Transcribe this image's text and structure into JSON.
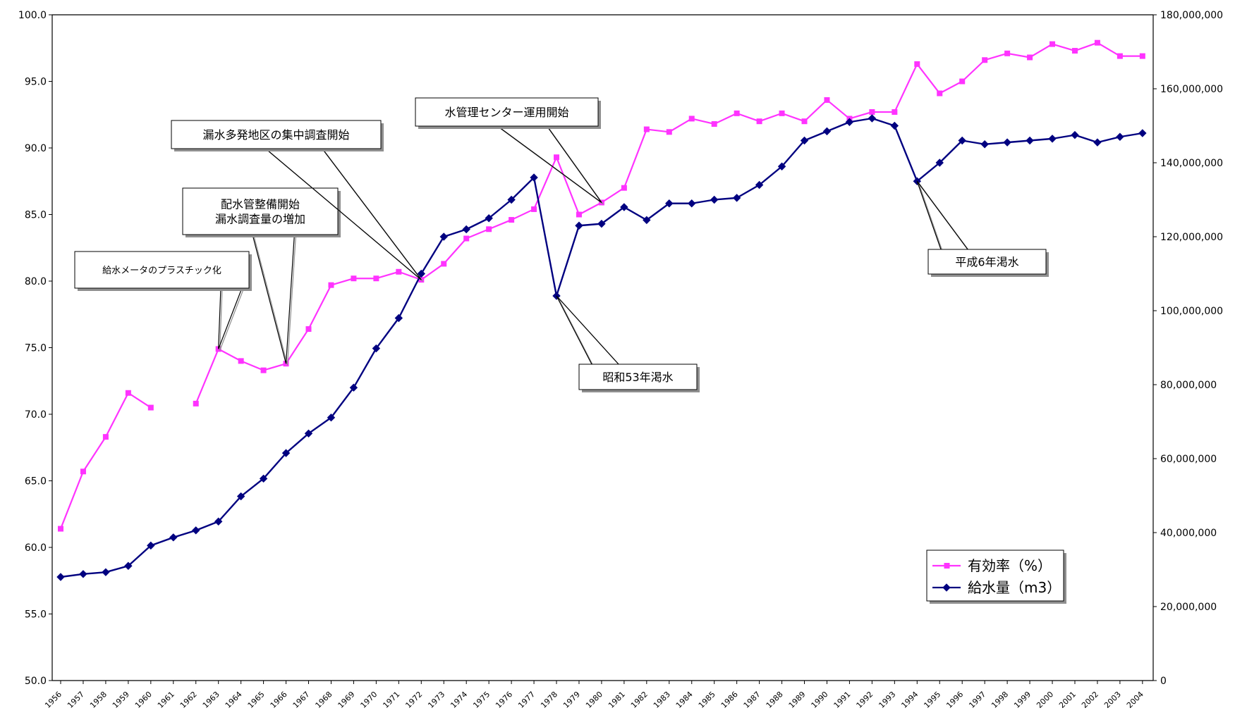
{
  "chart_data": {
    "type": "line",
    "title": "",
    "xlabel": "",
    "ylabel": "",
    "y2label": "",
    "categories": [
      "1956",
      "1957",
      "1958",
      "1959",
      "1960",
      "1961",
      "1962",
      "1963",
      "1964",
      "1965",
      "1966",
      "1967",
      "1968",
      "1969",
      "1970",
      "1971",
      "1972",
      "1973",
      "1974",
      "1975",
      "1976",
      "1977",
      "1978",
      "1979",
      "1980",
      "1981",
      "1982",
      "1983",
      "1984",
      "1985",
      "1986",
      "1987",
      "1988",
      "1989",
      "1990",
      "1991",
      "1992",
      "1993",
      "1994",
      "1995",
      "1996",
      "1997",
      "1998",
      "1999",
      "2000",
      "2001",
      "2002",
      "2003",
      "2004"
    ],
    "ylim": [
      50,
      100
    ],
    "y2lim": [
      0,
      180000000
    ],
    "left_ticks": [
      "50.0",
      "55.0",
      "60.0",
      "65.0",
      "70.0",
      "75.0",
      "80.0",
      "85.0",
      "90.0",
      "95.0",
      "100.0"
    ],
    "right_ticks": [
      "0",
      "20,000,000",
      "40,000,000",
      "60,000,000",
      "80,000,000",
      "100,000,000",
      "120,000,000",
      "140,000,000",
      "160,000,000",
      "180,000,000"
    ],
    "grid": false,
    "legend_position": "bottom-right",
    "series": [
      {
        "name": "有効率（%）",
        "axis": "left",
        "color": "#ff33ff",
        "marker": "square",
        "values": [
          61.4,
          65.7,
          68.3,
          71.6,
          70.5,
          null,
          70.8,
          74.9,
          74.0,
          73.3,
          73.8,
          76.4,
          79.7,
          80.2,
          80.2,
          80.7,
          80.1,
          81.3,
          83.2,
          83.9,
          84.6,
          85.4,
          89.3,
          85.0,
          85.9,
          87.0,
          91.4,
          91.2,
          92.2,
          91.8,
          92.6,
          92.0,
          92.6,
          92.0,
          93.6,
          92.2,
          92.7,
          92.7,
          96.3,
          94.1,
          95.0,
          96.6,
          97.1,
          96.8,
          97.8,
          97.3,
          97.9,
          96.9,
          96.9
        ]
      },
      {
        "name": "給水量（m3）",
        "axis": "right",
        "color": "#000080",
        "marker": "diamond",
        "values": [
          28000000,
          28800000,
          29300000,
          31000000,
          36500000,
          38700000,
          40600000,
          43000000,
          49800000,
          54600000,
          61500000,
          66800000,
          71100000,
          79200000,
          89800000,
          98000000,
          110000000,
          120000000,
          122000000,
          125000000,
          130000000,
          136000000,
          104000000,
          123000000,
          123500000,
          128000000,
          124500000,
          129000000,
          129000000,
          130000000,
          130500000,
          134000000,
          139000000,
          146000000,
          148500000,
          151000000,
          152000000,
          150000000,
          135000000,
          140000000,
          146000000,
          145000000,
          145500000,
          146000000,
          146500000,
          147500000,
          145500000,
          147000000,
          148000000
        ]
      }
    ],
    "annotations": [
      {
        "text_lines": [
          "給水メータのプラスチック化"
        ],
        "year": "1963"
      },
      {
        "text_lines": [
          "配水管整備開始",
          "漏水調査量の増加"
        ],
        "year": "1966"
      },
      {
        "text_lines": [
          "漏水多発地区の集中調査開始"
        ],
        "year": "1972"
      },
      {
        "text_lines": [
          "水管理センター運用開始"
        ],
        "year": "1980"
      },
      {
        "text_lines": [
          "昭和53年渇水"
        ],
        "year": "1978"
      },
      {
        "text_lines": [
          "平成6年渇水"
        ],
        "year": "1994"
      }
    ]
  }
}
